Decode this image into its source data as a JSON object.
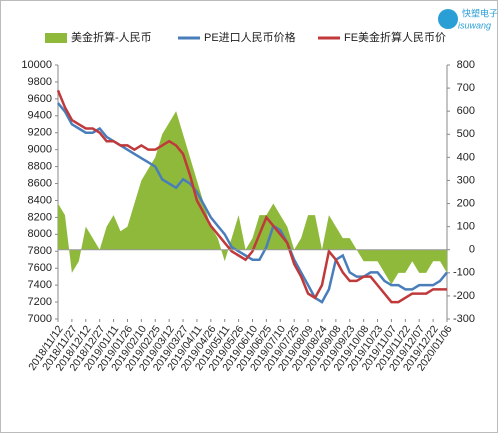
{
  "chart_data": {
    "type": "combo",
    "logo": {
      "name": "快塑电子",
      "site": "isuwang"
    },
    "categories": [
      "2018/11/12",
      null,
      "2018/11/27",
      null,
      "2018/12/12",
      null,
      "2018/12/27",
      null,
      "2019/01/11",
      null,
      "2019/01/26",
      null,
      "2019/02/10",
      null,
      "2019/02/25",
      null,
      "2019/03/12",
      null,
      "2019/03/27",
      null,
      "2019/04/11",
      null,
      "2019/04/26",
      null,
      "2019/05/11",
      null,
      "2019/05/26",
      null,
      "2019/06/10",
      null,
      "2019/06/25",
      null,
      "2019/07/10",
      null,
      "2019/07/25",
      null,
      "2019/08/09",
      null,
      "2019/08/24",
      null,
      "2019/09/08",
      null,
      "2019/09/23",
      null,
      "2019/10/08",
      null,
      "2019/10/23",
      null,
      "2019/11/07",
      null,
      "2019/11/22",
      null,
      "2019/12/07",
      null,
      "2019/12/22",
      null,
      "2020/01/06"
    ],
    "series": [
      {
        "name": "美金折算-人民币",
        "type": "area",
        "axis": "y2",
        "color": "#8fb93b",
        "values": [
          200,
          150,
          -100,
          -50,
          100,
          50,
          0,
          100,
          150,
          80,
          100,
          200,
          300,
          350,
          400,
          500,
          550,
          600,
          500,
          400,
          300,
          200,
          100,
          50,
          -50,
          50,
          150,
          0,
          50,
          150,
          150,
          200,
          150,
          100,
          0,
          50,
          150,
          150,
          0,
          150,
          100,
          50,
          50,
          0,
          -50,
          -50,
          -50,
          -100,
          -150,
          -100,
          -100,
          -50,
          -100,
          -100,
          -50,
          -50,
          -100
        ]
      },
      {
        "name": "PE进口人民币价格",
        "type": "line",
        "color": "#4a7ebb",
        "values": [
          9550,
          9450,
          9300,
          9250,
          9200,
          9200,
          9250,
          9150,
          9100,
          9050,
          9000,
          8950,
          8900,
          8850,
          8800,
          8650,
          8600,
          8550,
          8650,
          8600,
          8500,
          8350,
          8200,
          8100,
          8000,
          7850,
          7800,
          7750,
          7700,
          7700,
          7850,
          8100,
          8050,
          7900,
          7700,
          7550,
          7400,
          7250,
          7200,
          7350,
          7700,
          7750,
          7550,
          7500,
          7500,
          7550,
          7550,
          7450,
          7400,
          7400,
          7350,
          7350,
          7400,
          7400,
          7400,
          7450,
          7550
        ]
      },
      {
        "name": "FE美金折算人民币价",
        "type": "line",
        "color": "#c0393b",
        "values": [
          9700,
          9500,
          9350,
          9300,
          9250,
          9250,
          9200,
          9100,
          9100,
          9050,
          9050,
          9000,
          9050,
          9000,
          9000,
          9050,
          9100,
          9050,
          8950,
          8700,
          8400,
          8250,
          8100,
          8000,
          7900,
          7800,
          7750,
          7700,
          7800,
          8000,
          8200,
          8100,
          8000,
          7900,
          7650,
          7500,
          7300,
          7250,
          7400,
          7800,
          7700,
          7550,
          7450,
          7450,
          7500,
          7500,
          7400,
          7300,
          7200,
          7200,
          7250,
          7300,
          7300,
          7300,
          7350,
          7350,
          7350
        ]
      }
    ],
    "ylim": [
      7000,
      10000
    ],
    "yticks": [
      7000,
      7200,
      7400,
      7600,
      7800,
      8000,
      8200,
      8400,
      8600,
      8800,
      9000,
      9200,
      9400,
      9600,
      9800,
      10000
    ],
    "y2lim": [
      -300,
      800
    ],
    "y2ticks": [
      -300,
      -200,
      -100,
      0,
      100,
      200,
      300,
      400,
      500,
      600,
      700,
      800
    ]
  }
}
